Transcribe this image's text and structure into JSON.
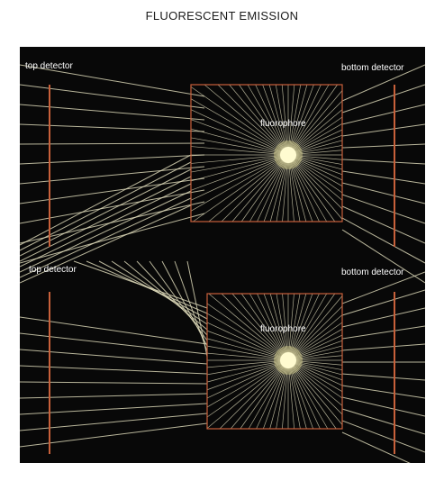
{
  "title": "FLUORESCENT EMISSION",
  "panels": [
    {
      "top_label": "top detector",
      "bottom_label": "bottom detector",
      "fluorophore_label": "fluorophore"
    },
    {
      "top_label": "top detector",
      "bottom_label": "bottom detector",
      "fluorophore_label": "fluorophore"
    }
  ],
  "colors": {
    "background": "#080808",
    "ray": "#e6e2c0",
    "detector": "#c8603a",
    "fluorophore": "#fff7a0"
  }
}
